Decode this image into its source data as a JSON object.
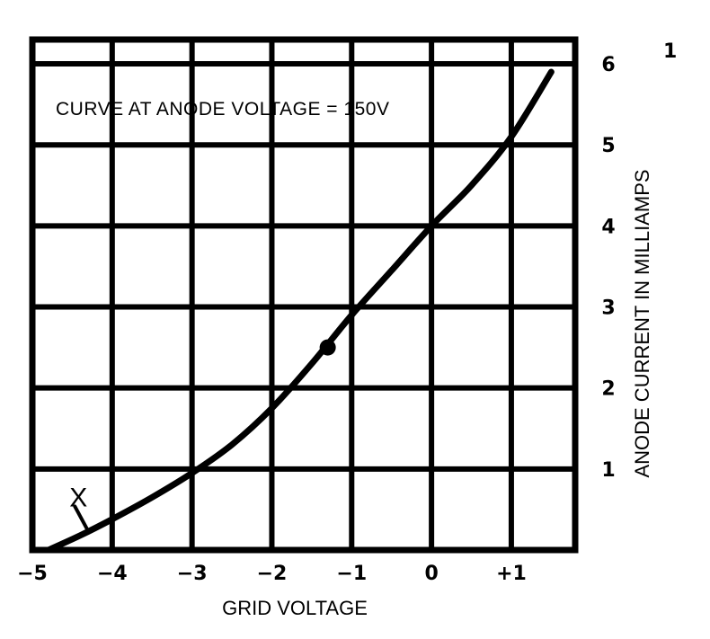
{
  "chart_data": {
    "type": "line",
    "title": "",
    "annotation": "CURVE AT ANODE VOLTAGE = 150V",
    "xlabel": "GRID VOLTAGE",
    "ylabel": "ANODE CURRENT IN MILLIAMPS",
    "xlim": [
      -5,
      1.8
    ],
    "ylim": [
      0,
      6.3
    ],
    "grid": true,
    "x_ticks": [
      -5,
      -4,
      -3,
      -2,
      -1,
      0,
      1
    ],
    "x_tick_labels": [
      "−5",
      "−4",
      "−3",
      "−2",
      "−1",
      "0",
      "+1"
    ],
    "y_ticks": [
      1,
      2,
      3,
      4,
      5,
      6
    ],
    "y_tick_labels": [
      "1",
      "2",
      "3",
      "4",
      "5",
      "6"
    ],
    "series": [
      {
        "x": [
          -4.8,
          -4.4,
          -4.0,
          -3.5,
          -3.0,
          -2.5,
          -2.0,
          -1.5,
          -1.0,
          -0.5,
          0.0,
          0.5,
          1.0,
          1.5
        ],
        "y": [
          0.0,
          0.18,
          0.38,
          0.65,
          0.95,
          1.3,
          1.75,
          2.3,
          2.9,
          3.45,
          4.0,
          4.5,
          5.1,
          5.9
        ]
      }
    ],
    "marked_point": {
      "x": -1.3,
      "y": 2.5
    },
    "point_label": {
      "text": "X",
      "x": -4.4,
      "y": 0.45
    },
    "corner_label": "1"
  }
}
